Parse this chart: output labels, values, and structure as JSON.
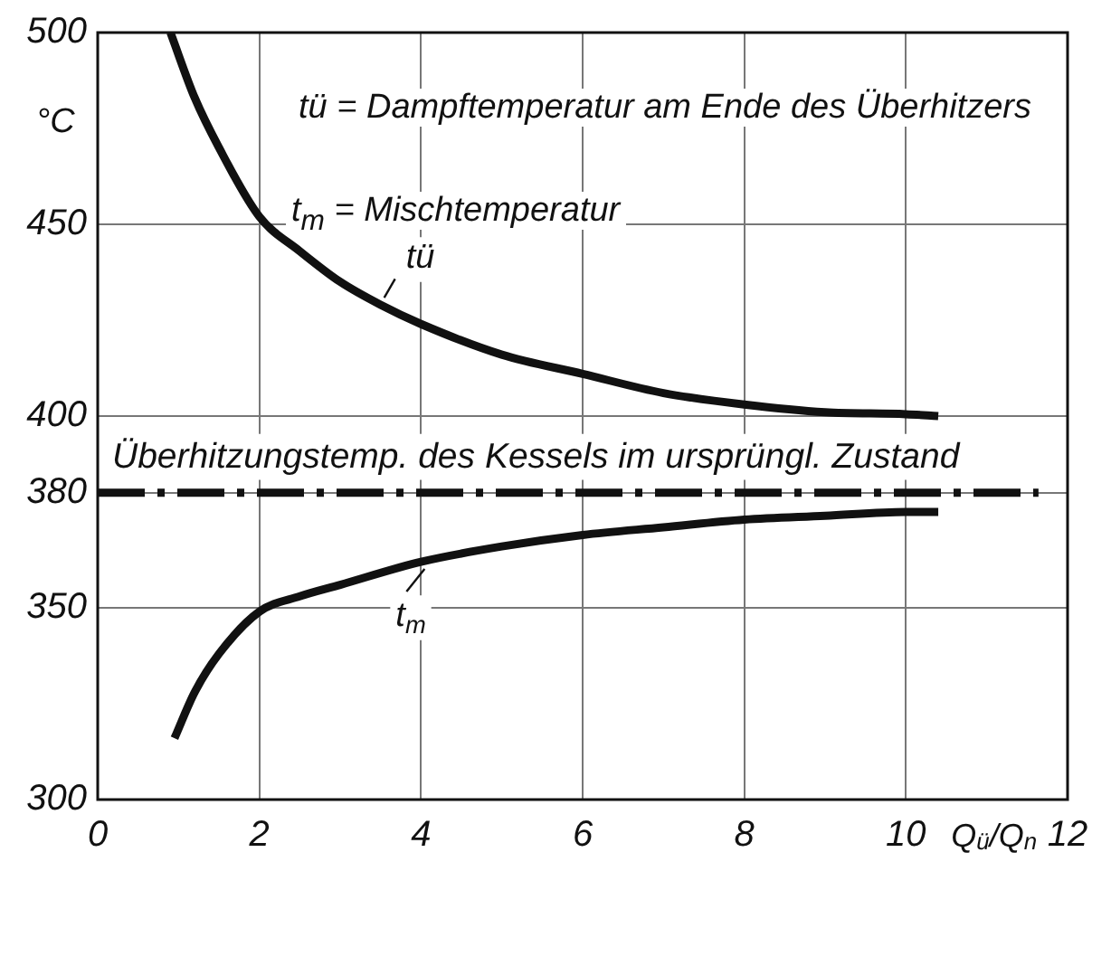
{
  "chart_data": {
    "type": "line",
    "ylabel": "°C",
    "xlabel": "Q$_{ü}$/Q$_{n}$",
    "xlim": [
      0,
      12
    ],
    "xticks": [
      0,
      2,
      4,
      6,
      8,
      10,
      12
    ],
    "ylim": [
      300,
      500
    ],
    "yticks": [
      300,
      350,
      380,
      400,
      450,
      500
    ],
    "grid": true,
    "marker": "none",
    "line_style": "solid",
    "series": [
      {
        "name": "tü",
        "color": "#111111",
        "x": [
          0.9,
          1.2,
          1.5,
          2,
          2.5,
          3,
          3.5,
          4,
          5,
          6,
          7,
          8,
          9,
          10,
          10.4
        ],
        "values": [
          500,
          483,
          470,
          452,
          443,
          435,
          429,
          424,
          416,
          411,
          406,
          403,
          401,
          400.5,
          400
        ]
      },
      {
        "name": "t$_{m}$",
        "color": "#111111",
        "x": [
          0.95,
          1.2,
          1.5,
          2,
          2.5,
          3,
          4,
          5,
          6,
          7,
          8,
          9,
          10,
          10.4
        ],
        "values": [
          316,
          328,
          338,
          349,
          353,
          356,
          362,
          366,
          369,
          371,
          373,
          374,
          375,
          375
        ]
      }
    ],
    "ref_lines": [
      {
        "axis": "y",
        "value": 380,
        "label": "Überhitzungstemp. des Kessels im ursprüngl. Zustand",
        "color": "#111111",
        "line_style": "dashed"
      }
    ],
    "annotations": [
      "tü = Dampftemperatur am Ende des Überhitzers",
      "t$_{m}$ = Mischtemperatur"
    ]
  }
}
